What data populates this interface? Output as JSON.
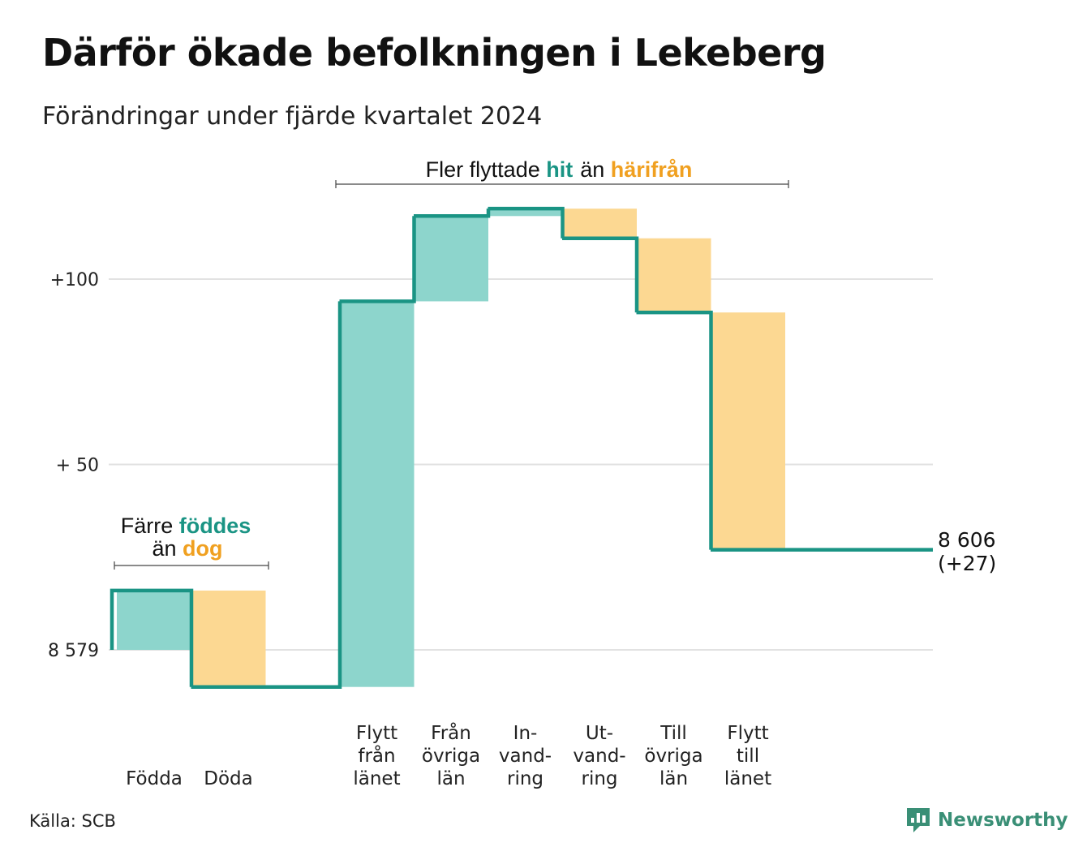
{
  "title": "Därför ökade befolkningen i Lekeberg",
  "subtitle": "Förändringar under fjärde kvartalet 2024",
  "source": "Källa: SCB",
  "brand": "Newsworthy",
  "colors": {
    "increase_fill": "#8dd5cc",
    "decrease_fill": "#fcd892",
    "line": "#1a9484",
    "teal_text": "#1a9484",
    "orange_text": "#f0a020",
    "grid": "#e2e2e2",
    "logo": "#3a8f76"
  },
  "annotations": {
    "births": {
      "line1_a": "Färre ",
      "line1_b": "föddes",
      "line2_a": "än ",
      "line2_b": "dog"
    },
    "migration": {
      "a": "Fler flyttade ",
      "b": "hit",
      "c": "än ",
      "d": "härifrån"
    }
  },
  "end_label": {
    "value": "8 606",
    "change": "(+27)"
  },
  "chart_data": {
    "type": "waterfall",
    "title": "Därför ökade befolkningen i Lekeberg",
    "subtitle": "Förändringar under fjärde kvartalet 2024",
    "start_value": 8579,
    "end_value": 8606,
    "net_change": 27,
    "ytick_labels": [
      "+100",
      "+ 50",
      "8 579"
    ],
    "yticks": [
      100,
      50,
      0
    ],
    "ylim": [
      -15,
      125
    ],
    "grid": true,
    "steps": [
      {
        "label": "Födda",
        "lines": [
          "Födda"
        ],
        "value": 16,
        "direction": "increase"
      },
      {
        "label": "Döda",
        "lines": [
          "Döda"
        ],
        "value": -26,
        "direction": "decrease"
      },
      {
        "label": "",
        "lines": [],
        "value": 0,
        "direction": "none"
      },
      {
        "label": "Flytt från länet",
        "lines": [
          "Flytt",
          "från",
          "länet"
        ],
        "value": 104,
        "direction": "increase"
      },
      {
        "label": "Från övriga län",
        "lines": [
          "Från",
          "övriga",
          "län"
        ],
        "value": 23,
        "direction": "increase"
      },
      {
        "label": "In-vand-ring",
        "lines": [
          "In-",
          "vand-",
          "ring"
        ],
        "value": 2,
        "direction": "increase"
      },
      {
        "label": "Ut-vand-ring",
        "lines": [
          "Ut-",
          "vand-",
          "ring"
        ],
        "value": -8,
        "direction": "decrease"
      },
      {
        "label": "Till övriga län",
        "lines": [
          "Till",
          "övriga",
          "län"
        ],
        "value": -20,
        "direction": "decrease"
      },
      {
        "label": "Flytt till länet",
        "lines": [
          "Flytt",
          "till",
          "länet"
        ],
        "value": -64,
        "direction": "decrease"
      }
    ]
  }
}
